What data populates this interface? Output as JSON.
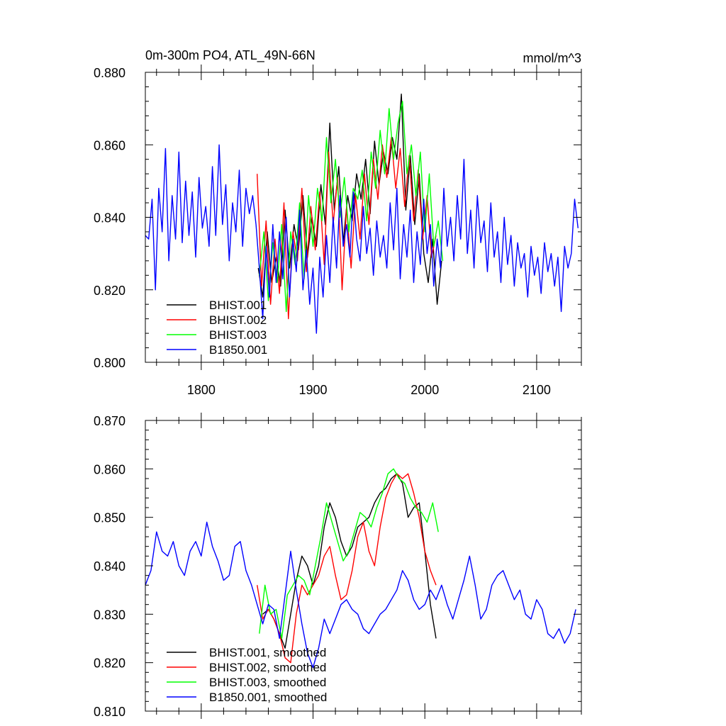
{
  "page": {
    "title_left": "0m-300m PO4, ATL_49N-66N",
    "title_right": "mmol/m^3"
  },
  "chart_data": [
    {
      "type": "line",
      "id": "raw",
      "title": "0m-300m PO4, ATL_49N-66N",
      "units": "mmol/m^3",
      "xlim": [
        1750,
        2140
      ],
      "ylim": [
        0.8,
        0.88
      ],
      "x_major_ticks": [
        1800,
        1900,
        2000,
        2100
      ],
      "x_minor_step": 20,
      "x_tick_labels": [
        "1800",
        "1900",
        "2000",
        "2100"
      ],
      "y_major_ticks": [
        0.8,
        0.82,
        0.84,
        0.86,
        0.88
      ],
      "y_tick_labels": [
        "0.800",
        "0.820",
        "0.840",
        "0.860",
        "0.880"
      ],
      "y_minor_step": 0.004,
      "legend_position": "bottom-left",
      "legend": [
        "BHIST.001",
        "BHIST.002",
        "BHIST.003",
        "B1850.001"
      ],
      "series": [
        {
          "name": "BHIST.001",
          "color": "#000000",
          "x": [
            1851,
            1855,
            1859,
            1863,
            1867,
            1871,
            1875,
            1879,
            1883,
            1887,
            1891,
            1895,
            1899,
            1903,
            1907,
            1911,
            1915,
            1919,
            1923,
            1927,
            1931,
            1935,
            1939,
            1943,
            1947,
            1951,
            1955,
            1959,
            1963,
            1967,
            1971,
            1975,
            1979,
            1983,
            1987,
            1991,
            1995,
            1999,
            2003,
            2007,
            2011,
            2015
          ],
          "values": [
            0.826,
            0.818,
            0.836,
            0.822,
            0.829,
            0.821,
            0.842,
            0.826,
            0.838,
            0.831,
            0.846,
            0.829,
            0.84,
            0.832,
            0.849,
            0.838,
            0.866,
            0.842,
            0.854,
            0.833,
            0.846,
            0.839,
            0.852,
            0.845,
            0.856,
            0.841,
            0.861,
            0.849,
            0.858,
            0.852,
            0.862,
            0.856,
            0.874,
            0.842,
            0.857,
            0.838,
            0.852,
            0.83,
            0.822,
            0.834,
            0.816,
            0.828
          ]
        },
        {
          "name": "BHIST.002",
          "color": "#ff0000",
          "x": [
            1850,
            1854,
            1858,
            1862,
            1866,
            1870,
            1874,
            1878,
            1882,
            1886,
            1890,
            1894,
            1898,
            1902,
            1906,
            1910,
            1914,
            1918,
            1922,
            1926,
            1930,
            1934,
            1938,
            1942,
            1946,
            1950,
            1954,
            1958,
            1962,
            1966,
            1970,
            1974,
            1978,
            1982,
            1986,
            1990,
            1994,
            1998,
            2002,
            2006,
            2010
          ],
          "values": [
            0.852,
            0.821,
            0.839,
            0.816,
            0.834,
            0.819,
            0.844,
            0.812,
            0.836,
            0.828,
            0.848,
            0.825,
            0.843,
            0.831,
            0.847,
            0.827,
            0.858,
            0.838,
            0.851,
            0.82,
            0.843,
            0.826,
            0.846,
            0.834,
            0.852,
            0.838,
            0.856,
            0.845,
            0.86,
            0.851,
            0.862,
            0.848,
            0.859,
            0.843,
            0.857,
            0.839,
            0.853,
            0.834,
            0.846,
            0.829,
            0.835
          ]
        },
        {
          "name": "BHIST.003",
          "color": "#00ff00",
          "x": [
            1852,
            1856,
            1860,
            1864,
            1868,
            1872,
            1876,
            1880,
            1884,
            1888,
            1892,
            1896,
            1900,
            1904,
            1908,
            1912,
            1916,
            1920,
            1924,
            1928,
            1932,
            1936,
            1940,
            1944,
            1948,
            1952,
            1956,
            1960,
            1964,
            1968,
            1972,
            1976,
            1980,
            1984,
            1988,
            1992,
            1996,
            2000,
            2004,
            2008,
            2012,
            2016
          ],
          "values": [
            0.824,
            0.836,
            0.817,
            0.833,
            0.822,
            0.838,
            0.814,
            0.836,
            0.827,
            0.844,
            0.823,
            0.846,
            0.832,
            0.848,
            0.839,
            0.862,
            0.844,
            0.856,
            0.84,
            0.851,
            0.836,
            0.848,
            0.845,
            0.853,
            0.839,
            0.858,
            0.848,
            0.864,
            0.852,
            0.87,
            0.856,
            0.866,
            0.872,
            0.852,
            0.86,
            0.846,
            0.858,
            0.836,
            0.852,
            0.832,
            0.839,
            0.828
          ]
        },
        {
          "name": "B1850.001",
          "color": "#0000ff",
          "x": [
            1750,
            1753,
            1756,
            1759,
            1762,
            1765,
            1768,
            1771,
            1774,
            1777,
            1780,
            1783,
            1786,
            1789,
            1792,
            1795,
            1798,
            1801,
            1804,
            1807,
            1810,
            1813,
            1816,
            1819,
            1822,
            1825,
            1828,
            1831,
            1834,
            1837,
            1840,
            1843,
            1846,
            1849,
            1852,
            1855,
            1858,
            1861,
            1864,
            1867,
            1870,
            1873,
            1876,
            1879,
            1882,
            1885,
            1888,
            1891,
            1894,
            1897,
            1900,
            1903,
            1906,
            1909,
            1912,
            1915,
            1918,
            1921,
            1924,
            1927,
            1930,
            1933,
            1936,
            1939,
            1942,
            1945,
            1948,
            1951,
            1954,
            1957,
            1960,
            1963,
            1966,
            1969,
            1972,
            1975,
            1978,
            1981,
            1984,
            1987,
            1990,
            1993,
            1996,
            1999,
            2002,
            2005,
            2008,
            2011,
            2014,
            2017,
            2020,
            2023,
            2026,
            2029,
            2032,
            2035,
            2038,
            2041,
            2044,
            2047,
            2050,
            2053,
            2056,
            2059,
            2062,
            2065,
            2068,
            2071,
            2074,
            2077,
            2080,
            2083,
            2086,
            2089,
            2092,
            2095,
            2098,
            2101,
            2104,
            2107,
            2110,
            2113,
            2116,
            2119,
            2122,
            2125,
            2128,
            2131,
            2134,
            2137
          ],
          "values": [
            0.835,
            0.834,
            0.845,
            0.82,
            0.848,
            0.836,
            0.859,
            0.828,
            0.846,
            0.834,
            0.858,
            0.833,
            0.85,
            0.835,
            0.847,
            0.829,
            0.851,
            0.837,
            0.843,
            0.832,
            0.854,
            0.835,
            0.86,
            0.838,
            0.849,
            0.828,
            0.844,
            0.836,
            0.853,
            0.832,
            0.848,
            0.841,
            0.846,
            0.838,
            0.826,
            0.812,
            0.832,
            0.818,
            0.838,
            0.822,
            0.836,
            0.823,
            0.84,
            0.818,
            0.834,
            0.825,
            0.842,
            0.82,
            0.831,
            0.816,
            0.826,
            0.808,
            0.829,
            0.818,
            0.835,
            0.822,
            0.84,
            0.826,
            0.846,
            0.832,
            0.838,
            0.829,
            0.847,
            0.834,
            0.828,
            0.843,
            0.83,
            0.837,
            0.824,
            0.839,
            0.829,
            0.835,
            0.826,
            0.844,
            0.831,
            0.848,
            0.823,
            0.838,
            0.829,
            0.842,
            0.822,
            0.836,
            0.827,
            0.845,
            0.83,
            0.838,
            0.821,
            0.834,
            0.826,
            0.848,
            0.832,
            0.84,
            0.828,
            0.846,
            0.834,
            0.856,
            0.83,
            0.842,
            0.826,
            0.846,
            0.833,
            0.839,
            0.825,
            0.844,
            0.829,
            0.836,
            0.822,
            0.84,
            0.827,
            0.835,
            0.821,
            0.833,
            0.826,
            0.83,
            0.818,
            0.832,
            0.824,
            0.829,
            0.819,
            0.833,
            0.825,
            0.83,
            0.821,
            0.829,
            0.814,
            0.832,
            0.826,
            0.83,
            0.845,
            0.837
          ]
        }
      ]
    },
    {
      "type": "line",
      "id": "smoothed",
      "xlim": [
        1750,
        2140
      ],
      "ylim": [
        0.81,
        0.87
      ],
      "x_major_ticks": [
        1800,
        1900,
        2000,
        2100
      ],
      "x_minor_step": 20,
      "y_major_ticks": [
        0.81,
        0.82,
        0.83,
        0.84,
        0.85,
        0.86,
        0.87
      ],
      "y_tick_labels": [
        "0.810",
        "0.820",
        "0.830",
        "0.840",
        "0.850",
        "0.860",
        "0.870"
      ],
      "y_minor_step": 0.002,
      "legend_position": "bottom-left",
      "legend": [
        "BHIST.001, smoothed",
        "BHIST.002, smoothed",
        "BHIST.003, smoothed",
        "B1850.001, smoothed"
      ],
      "series": [
        {
          "name": "BHIST.001, smoothed",
          "color": "#000000",
          "x": [
            1855,
            1860,
            1865,
            1870,
            1875,
            1880,
            1885,
            1890,
            1895,
            1900,
            1905,
            1910,
            1915,
            1920,
            1925,
            1930,
            1935,
            1940,
            1945,
            1950,
            1955,
            1960,
            1965,
            1970,
            1975,
            1980,
            1985,
            1990,
            1995,
            2000,
            2005,
            2010
          ],
          "values": [
            0.83,
            0.831,
            0.829,
            0.826,
            0.823,
            0.83,
            0.837,
            0.842,
            0.84,
            0.836,
            0.84,
            0.848,
            0.853,
            0.85,
            0.845,
            0.842,
            0.844,
            0.848,
            0.849,
            0.85,
            0.853,
            0.855,
            0.856,
            0.858,
            0.859,
            0.857,
            0.85,
            0.852,
            0.853,
            0.843,
            0.832,
            0.825
          ]
        },
        {
          "name": "BHIST.002, smoothed",
          "color": "#ff0000",
          "x": [
            1850,
            1855,
            1860,
            1865,
            1870,
            1875,
            1880,
            1885,
            1890,
            1895,
            1900,
            1905,
            1910,
            1915,
            1920,
            1925,
            1930,
            1935,
            1940,
            1945,
            1950,
            1955,
            1960,
            1965,
            1970,
            1975,
            1980,
            1985,
            1990,
            1995,
            2000,
            2005,
            2010
          ],
          "values": [
            0.836,
            0.829,
            0.831,
            0.829,
            0.826,
            0.821,
            0.82,
            0.83,
            0.836,
            0.834,
            0.836,
            0.838,
            0.842,
            0.844,
            0.838,
            0.833,
            0.834,
            0.839,
            0.846,
            0.849,
            0.843,
            0.84,
            0.848,
            0.854,
            0.857,
            0.859,
            0.858,
            0.859,
            0.855,
            0.85,
            0.843,
            0.839,
            0.836
          ]
        },
        {
          "name": "BHIST.003, smoothed",
          "color": "#00ff00",
          "x": [
            1852,
            1857,
            1862,
            1867,
            1872,
            1877,
            1882,
            1887,
            1892,
            1897,
            1902,
            1907,
            1912,
            1917,
            1922,
            1927,
            1932,
            1937,
            1942,
            1947,
            1952,
            1957,
            1962,
            1967,
            1972,
            1977,
            1982,
            1987,
            1992,
            1997,
            2002,
            2007,
            2012
          ],
          "values": [
            0.826,
            0.836,
            0.83,
            0.831,
            0.825,
            0.834,
            0.836,
            0.838,
            0.837,
            0.834,
            0.84,
            0.846,
            0.853,
            0.849,
            0.845,
            0.841,
            0.843,
            0.847,
            0.851,
            0.85,
            0.848,
            0.852,
            0.855,
            0.859,
            0.86,
            0.858,
            0.857,
            0.854,
            0.852,
            0.851,
            0.849,
            0.853,
            0.847
          ]
        },
        {
          "name": "B1850.001, smoothed",
          "color": "#0000ff",
          "x": [
            1750,
            1755,
            1760,
            1765,
            1770,
            1775,
            1780,
            1785,
            1790,
            1795,
            1800,
            1805,
            1810,
            1815,
            1820,
            1825,
            1830,
            1835,
            1840,
            1845,
            1850,
            1855,
            1860,
            1865,
            1870,
            1875,
            1880,
            1885,
            1890,
            1895,
            1900,
            1905,
            1910,
            1915,
            1920,
            1925,
            1930,
            1935,
            1940,
            1945,
            1950,
            1955,
            1960,
            1965,
            1970,
            1975,
            1980,
            1985,
            1990,
            1995,
            2000,
            2005,
            2010,
            2015,
            2020,
            2025,
            2030,
            2035,
            2040,
            2045,
            2050,
            2055,
            2060,
            2065,
            2070,
            2075,
            2080,
            2085,
            2090,
            2095,
            2100,
            2105,
            2110,
            2115,
            2120,
            2125,
            2130,
            2135
          ],
          "values": [
            0.836,
            0.839,
            0.847,
            0.843,
            0.842,
            0.845,
            0.84,
            0.838,
            0.843,
            0.845,
            0.842,
            0.849,
            0.844,
            0.841,
            0.837,
            0.838,
            0.844,
            0.845,
            0.839,
            0.836,
            0.832,
            0.828,
            0.832,
            0.831,
            0.825,
            0.834,
            0.843,
            0.835,
            0.828,
            0.822,
            0.819,
            0.823,
            0.829,
            0.826,
            0.829,
            0.832,
            0.833,
            0.831,
            0.83,
            0.827,
            0.826,
            0.828,
            0.83,
            0.831,
            0.833,
            0.835,
            0.839,
            0.837,
            0.833,
            0.831,
            0.832,
            0.835,
            0.833,
            0.836,
            0.832,
            0.829,
            0.833,
            0.837,
            0.842,
            0.836,
            0.829,
            0.831,
            0.836,
            0.838,
            0.839,
            0.836,
            0.833,
            0.835,
            0.83,
            0.829,
            0.833,
            0.831,
            0.826,
            0.825,
            0.827,
            0.824,
            0.826,
            0.831
          ]
        }
      ]
    }
  ]
}
